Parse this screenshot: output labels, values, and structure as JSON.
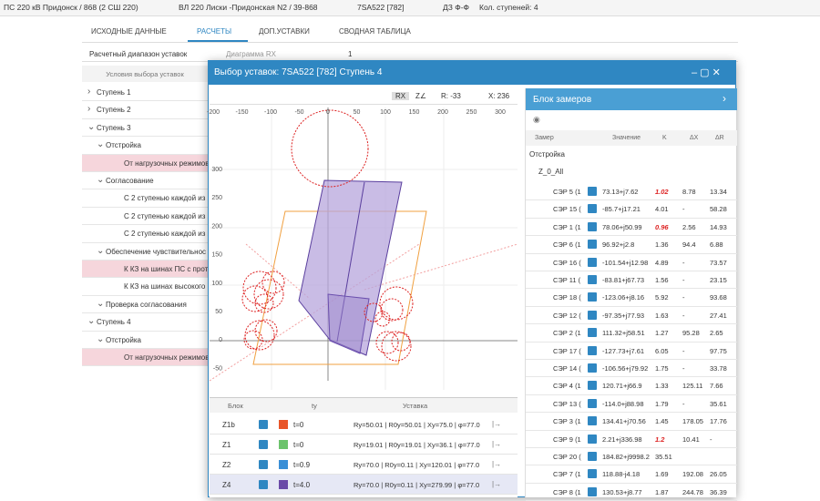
{
  "breadcrumb": [
    "ПС 220 кВ Придонск / 868 (2 СШ 220)",
    "ВЛ 220 Лиски -Придонская N2 / 39-868",
    "7SA522 [782]",
    "ДЗ Ф-Ф",
    "Кол. ступеней: 4"
  ],
  "tabs": [
    "ИСХОДНЫЕ ДАННЫЕ",
    "РАСЧЕТЫ",
    "ДОП.УСТАВКИ",
    "СВОДНАЯ ТАБЛИЦА"
  ],
  "toolbar": {
    "range": "Расчетный диапазон уставок",
    "diagram": "Диаграмма RX",
    "count": "1"
  },
  "left_panel": {
    "header": "Условия выбора уставок",
    "tree": [
      "Ступень 1",
      "Ступень 2",
      "Ступень 3",
      "Отстройка",
      "От нагрузочных режимов",
      "Согласование",
      "С 2 ступенью каждой из з",
      "С 2 ступенью каждой из з",
      "С 2 ступенью каждой из з",
      "Обеспечение чувствительнос",
      "К КЗ на шинах ПС с проти",
      "К КЗ на шинах высокого н",
      "Проверка согласования",
      "Ступень 4",
      "Отстройка",
      "От нагрузочных режимов"
    ]
  },
  "modal": {
    "title": "Выбор уставок: 7SA522 [782] Ступень 4",
    "chart_toolbar": {
      "rx": "RX",
      "z": "Z∠",
      "r": "R: -33",
      "x": "X: 236"
    },
    "x_tick_labels": [
      "-200",
      "-150",
      "-100",
      "-50",
      "0",
      "50",
      "100",
      "150",
      "200",
      "250",
      "300"
    ],
    "y_tick_labels": [
      "300",
      "250",
      "200",
      "150",
      "100",
      "50",
      "0",
      "-50"
    ],
    "table": {
      "headers": {
        "block": "Блок",
        "t": "tу",
        "setting": "Уставка"
      },
      "rows": [
        {
          "name": "Z1b",
          "color": "#e8562a",
          "t": "t=0",
          "setting": "Rу=50.01 | R0у=50.01 | Xу=75.0 | φ=77.0"
        },
        {
          "name": "Z1",
          "color": "#6cc36c",
          "t": "t=0",
          "setting": "Rу=19.01 | R0у=19.01 | Xу=36.1 | φ=77.0"
        },
        {
          "name": "Z2",
          "color": "#3a8fd6",
          "t": "t=0.9",
          "setting": "Rу=70.0 | R0у=0.11 | Xу=120.01 | φ=77.0"
        },
        {
          "name": "Z4",
          "color": "#6a4aa8",
          "t": "t=4.0",
          "setting": "Rу=70.0 | R0у=0.11 | Xу=279.99 | φ=77.0"
        }
      ]
    },
    "measures": {
      "title": "Блок замеров",
      "headers": [
        "Замер",
        "Значение",
        "K",
        "ΔX",
        "ΔR"
      ],
      "group": "Отстройка",
      "subgroup": "Z_0_All",
      "rows": [
        {
          "name": "СЭР 5 (1",
          "value": "73.13+j7.62",
          "k": "1.02",
          "dx": "8.78",
          "dr": "13.34",
          "k_warn": true
        },
        {
          "name": "СЭР 15 (",
          "value": "-85.7+j17.21",
          "k": "4.01",
          "dx": "-",
          "dr": "58.28"
        },
        {
          "name": "СЭР 1 (1",
          "value": "78.06+j50.99",
          "k": "0.96",
          "dx": "2.56",
          "dr": "14.93",
          "k_warn": true
        },
        {
          "name": "СЭР 6 (1",
          "value": "96.92+j2.8",
          "k": "1.36",
          "dx": "94.4",
          "dr": "6.88"
        },
        {
          "name": "СЭР 16 (",
          "value": "-101.54+j12.98",
          "k": "4.89",
          "dx": "-",
          "dr": "73.57"
        },
        {
          "name": "СЭР 11 (",
          "value": "-83.81+j67.73",
          "k": "1.56",
          "dx": "-",
          "dr": "23.15"
        },
        {
          "name": "СЭР 18 (",
          "value": "-123.06+j8.16",
          "k": "5.92",
          "dx": "-",
          "dr": "93.68"
        },
        {
          "name": "СЭР 12 (",
          "value": "-97.35+j77.93",
          "k": "1.63",
          "dx": "-",
          "dr": "27.41"
        },
        {
          "name": "СЭР 2 (1",
          "value": "111.32+j58.51",
          "k": "1.27",
          "dx": "95.28",
          "dr": "2.65"
        },
        {
          "name": "СЭР 17 (",
          "value": "-127.73+j7.61",
          "k": "6.05",
          "dx": "-",
          "dr": "97.75"
        },
        {
          "name": "СЭР 14 (",
          "value": "-106.56+j79.92",
          "k": "1.75",
          "dx": "-",
          "dr": "33.78"
        },
        {
          "name": "СЭР 4 (1",
          "value": "120.71+j66.9",
          "k": "1.33",
          "dx": "125.11",
          "dr": "7.66"
        },
        {
          "name": "СЭР 13 (",
          "value": "-114.0+j88.98",
          "k": "1.79",
          "dx": "-",
          "dr": "35.61"
        },
        {
          "name": "СЭР 3 (1",
          "value": "134.41+j70.56",
          "k": "1.45",
          "dx": "178.05",
          "dr": "17.76"
        },
        {
          "name": "СЭР 9 (1",
          "value": "2.21+j336.98",
          "k": "1.2",
          "dx": "10.41",
          "dr": "-",
          "k_warn": true
        },
        {
          "name": "СЭР 20 (",
          "value": "184.82+j9998.2",
          "k": "35.51"
        },
        {
          "name": "СЭР 7 (1",
          "value": "118.88-j4.18",
          "k": "1.69",
          "dx": "192.08",
          "dr": "26.05"
        },
        {
          "name": "СЭР 8 (1",
          "value": "130.53+j8.77",
          "k": "1.87",
          "dx": "244.78",
          "dr": "36.39"
        }
      ]
    }
  }
}
